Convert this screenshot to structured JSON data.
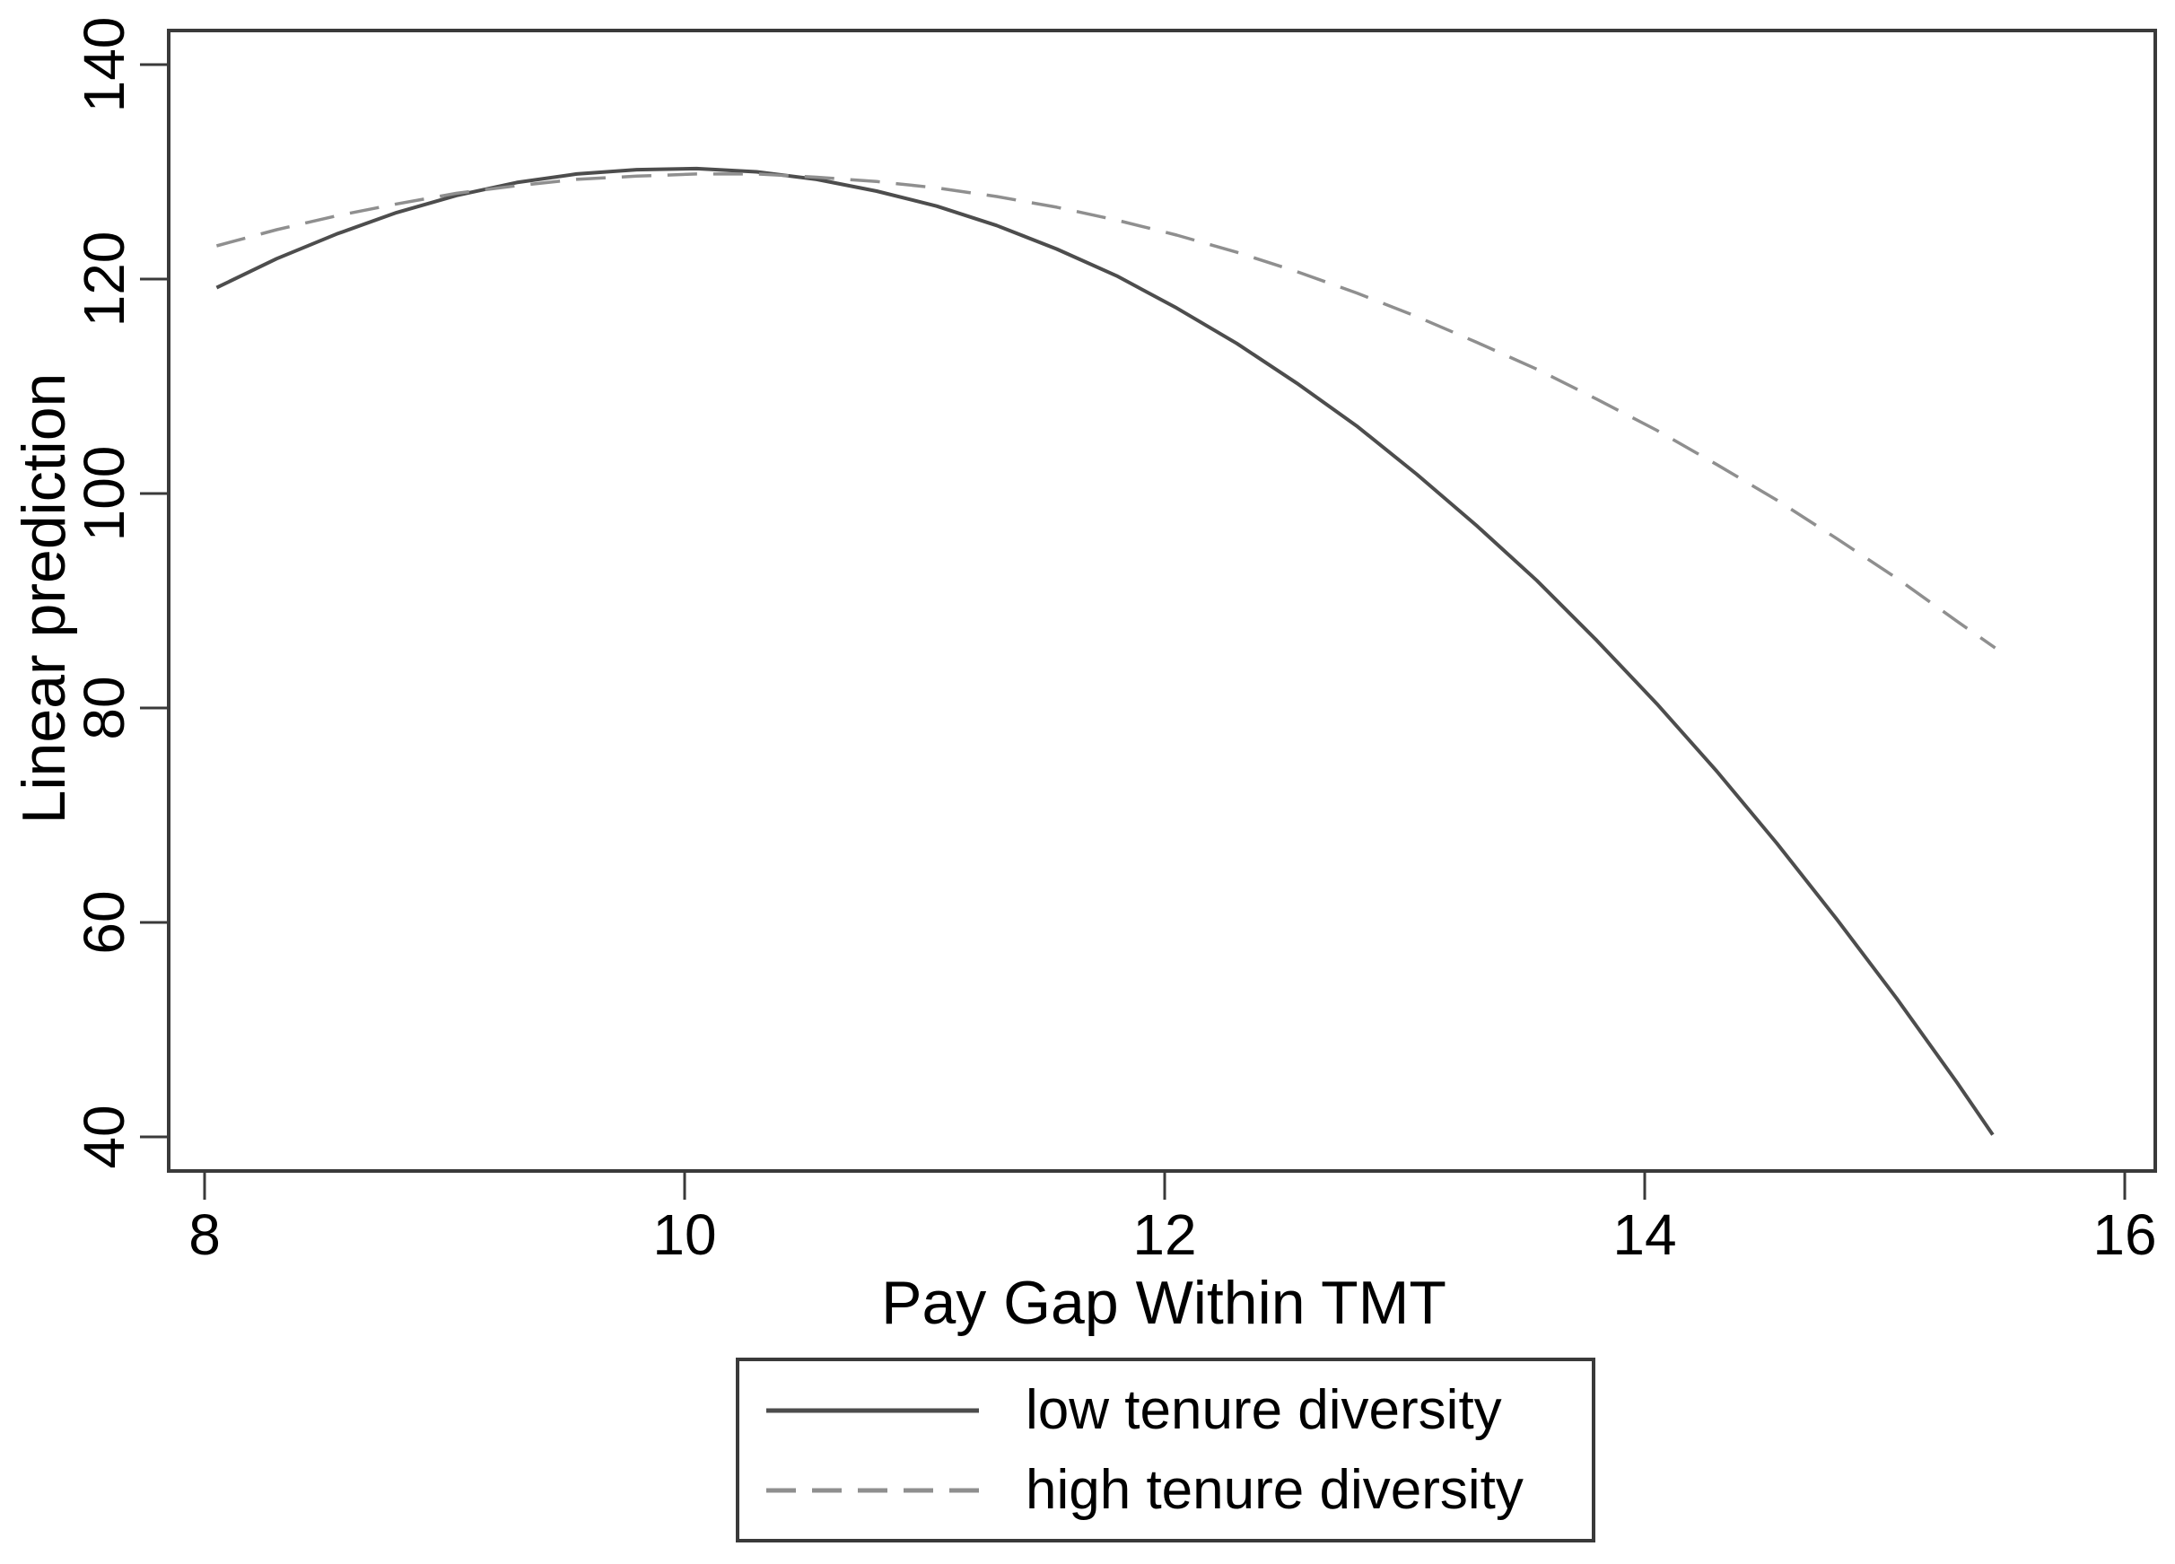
{
  "figure": {
    "background": "#ffffff"
  },
  "chart_data": {
    "type": "line",
    "title": "",
    "xlabel": "Pay Gap Within TMT",
    "ylabel": "Linear prediction",
    "x_ticks": [
      8,
      10,
      12,
      14,
      16
    ],
    "y_ticks": [
      40,
      60,
      80,
      100,
      120,
      140
    ],
    "xlim": [
      7.85,
      16.13
    ],
    "ylim": [
      37.2,
      143.2
    ],
    "grid": false,
    "legend_position": "bottom-center",
    "series": [
      {
        "name": "low tenure diversity",
        "line_style": "solid",
        "color": "#4d4d4d",
        "x": [
          8.05,
          8.3,
          8.55,
          8.8,
          9.05,
          9.3,
          9.55,
          9.8,
          10.05,
          10.3,
          10.55,
          10.8,
          11.05,
          11.3,
          11.55,
          11.8,
          12.05,
          12.3,
          12.55,
          12.8,
          13.05,
          13.3,
          13.55,
          13.8,
          14.05,
          14.3,
          14.55,
          14.8,
          15.05,
          15.3,
          15.45
        ],
        "y": [
          119.2,
          121.9,
          124.2,
          126.2,
          127.8,
          129.0,
          129.8,
          130.2,
          130.3,
          130.0,
          129.3,
          128.2,
          126.8,
          125.0,
          122.8,
          120.3,
          117.3,
          114.0,
          110.3,
          106.3,
          101.8,
          97.0,
          91.9,
          86.3,
          80.4,
          74.1,
          67.4,
          60.3,
          52.9,
          45.1,
          40.2
        ]
      },
      {
        "name": "high tenure diversity",
        "line_style": "dashed",
        "color": "#8f8f8f",
        "x": [
          8.05,
          8.3,
          8.55,
          8.8,
          9.05,
          9.3,
          9.55,
          9.8,
          10.05,
          10.3,
          10.55,
          10.8,
          11.05,
          11.3,
          11.55,
          11.8,
          12.05,
          12.3,
          12.55,
          12.8,
          13.05,
          13.3,
          13.55,
          13.8,
          14.05,
          14.3,
          14.55,
          14.8,
          15.05,
          15.3,
          15.46
        ],
        "y": [
          123.1,
          124.6,
          125.9,
          127.0,
          128.0,
          128.7,
          129.3,
          129.6,
          129.8,
          129.8,
          129.5,
          129.1,
          128.5,
          127.7,
          126.7,
          125.5,
          124.1,
          122.5,
          120.7,
          118.7,
          116.5,
          114.1,
          111.6,
          108.8,
          105.9,
          102.7,
          99.4,
          95.8,
          92.1,
          88.1,
          85.6
        ]
      }
    ],
    "colors": {
      "axis": "#3a3a3a",
      "text": "#000000",
      "background": "#ffffff"
    }
  }
}
